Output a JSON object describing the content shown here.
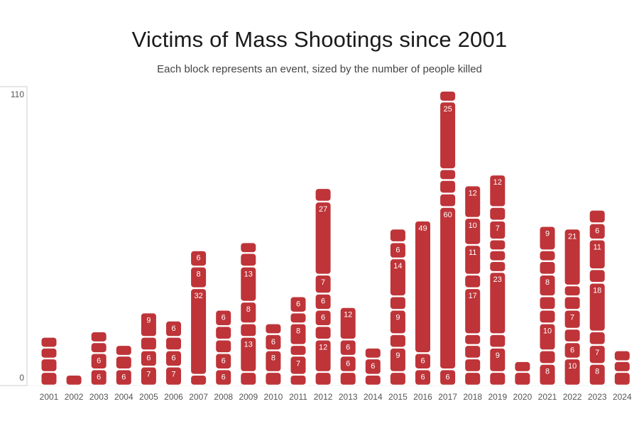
{
  "header": {
    "title": "Victims of Mass Shootings since 2001",
    "subtitle": "Each block represents an event, sized by the number of people killed"
  },
  "colors": {
    "block": "#be3438",
    "block_label": "#ffffff",
    "axis": "#cccccc",
    "tick_text": "#555555"
  },
  "chart_data": {
    "type": "bar",
    "title": "Victims of Mass Shootings since 2001",
    "subtitle": "Each block represents an event, sized by the number of people killed",
    "ylim": [
      0,
      110
    ],
    "y_ticks": [
      "0",
      "110"
    ],
    "stacked": true,
    "categories": [
      "2001",
      "2002",
      "2003",
      "2004",
      "2005",
      "2006",
      "2007",
      "2008",
      "2009",
      "2010",
      "2011",
      "2012",
      "2013",
      "2014",
      "2015",
      "2016",
      "2017",
      "2018",
      "2019",
      "2020",
      "2021",
      "2022",
      "2023",
      "2024"
    ],
    "events": [
      [
        5,
        5,
        4,
        4
      ],
      [
        4
      ],
      [
        6,
        6,
        4,
        4
      ],
      [
        6,
        5,
        4
      ],
      [
        7,
        6,
        5,
        9
      ],
      [
        7,
        6,
        5,
        6
      ],
      [
        4,
        32,
        8,
        6
      ],
      [
        6,
        6,
        5,
        5,
        6
      ],
      [
        5,
        13,
        5,
        8,
        13,
        5,
        4
      ],
      [
        5,
        8,
        6,
        4
      ],
      [
        4,
        7,
        4,
        8,
        4,
        6
      ],
      [
        5,
        12,
        5,
        6,
        6,
        7,
        27,
        5
      ],
      [
        5,
        6,
        6,
        12
      ],
      [
        4,
        6,
        4
      ],
      [
        5,
        9,
        5,
        9,
        5,
        14,
        6,
        5
      ],
      [
        6,
        6,
        49
      ],
      [
        6,
        60,
        5,
        5,
        4,
        25,
        4
      ],
      [
        5,
        5,
        5,
        4,
        17,
        5,
        11,
        10,
        12
      ],
      [
        5,
        9,
        5,
        23,
        4,
        4,
        4,
        7,
        5,
        12
      ],
      [
        5,
        4
      ],
      [
        8,
        5,
        10,
        5,
        5,
        8,
        5,
        4,
        9
      ],
      [
        10,
        6,
        5,
        7,
        5,
        4,
        21
      ],
      [
        8,
        7,
        5,
        18,
        5,
        11,
        6,
        5
      ],
      [
        5,
        4,
        4
      ]
    ]
  }
}
